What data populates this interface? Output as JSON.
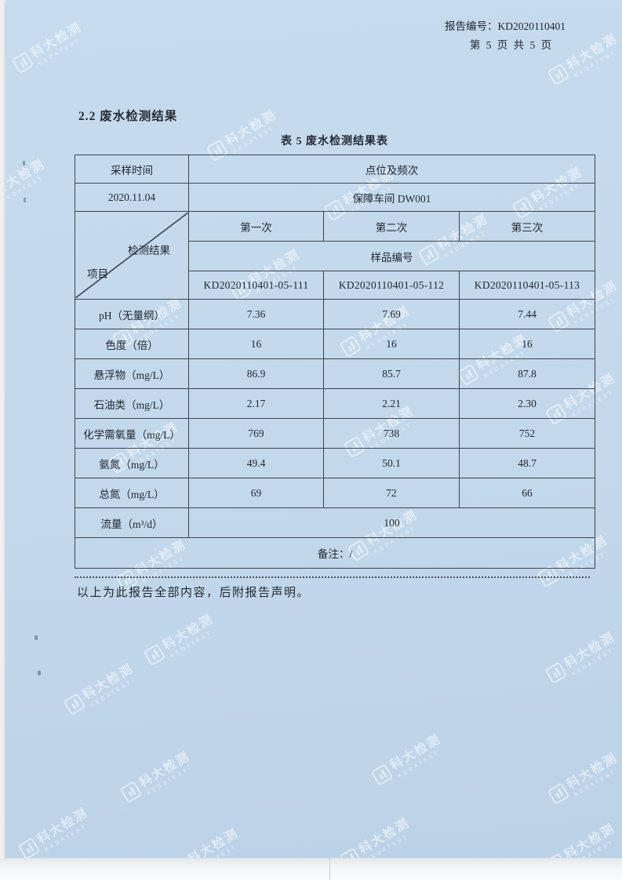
{
  "page": {
    "report_no": "报告编号：KD2020110401",
    "page_line": "第 5 页 共 5 页",
    "section_title": "2.2 废水检测结果",
    "table_title": "表 5 废水检测结果表",
    "footer_note": "以上为此报告全部内容，后附报告声明。"
  },
  "watermark": {
    "text": "科大检测",
    "subtext": "KEDATEST"
  },
  "table": {
    "sampling_time_label": "采样时间",
    "point_freq_label": "点位及频次",
    "sampling_date": "2020.11.04",
    "point_value": "保障车间 DW001",
    "diag_top_label": "检测结果",
    "diag_bottom_label": "项目",
    "freq_headers": [
      "第一次",
      "第二次",
      "第三次"
    ],
    "sample_no_label": "样品编号",
    "sample_ids": [
      "KD2020110401-05-111",
      "KD2020110401-05-112",
      "KD2020110401-05-113"
    ],
    "rows": [
      {
        "item": "pH（无量纲）",
        "values": [
          "7.36",
          "7.69",
          "7.44"
        ]
      },
      {
        "item": "色度（倍）",
        "values": [
          "16",
          "16",
          "16"
        ]
      },
      {
        "item": "悬浮物（mg/L）",
        "values": [
          "86.9",
          "85.7",
          "87.8"
        ]
      },
      {
        "item": "石油类（mg/L）",
        "values": [
          "2.17",
          "2.21",
          "2.30"
        ]
      },
      {
        "item": "化学需氧量（mg/L）",
        "values": [
          "769",
          "738",
          "752"
        ]
      },
      {
        "item": "氨氮（mg/L）",
        "values": [
          "49.4",
          "50.1",
          "48.7"
        ]
      },
      {
        "item": "总氮（mg/L）",
        "values": [
          "69",
          "72",
          "66"
        ]
      }
    ],
    "flow_row": {
      "item": "流量（m³/d）",
      "value": "100"
    },
    "remark": "备注：/"
  }
}
